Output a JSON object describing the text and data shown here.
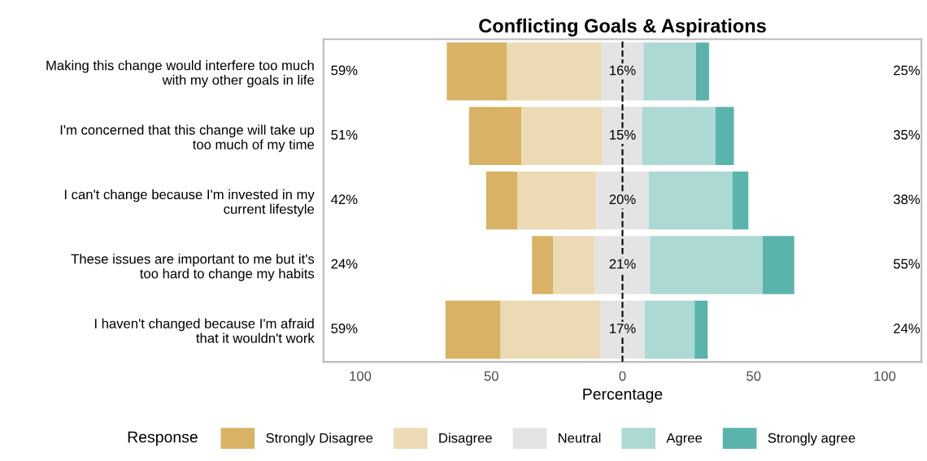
{
  "chart_data": {
    "type": "bar",
    "orientation": "horizontal",
    "title": "Conflicting Goals & Aspirations",
    "xlabel": "Percentage",
    "legend_title": "Response",
    "legend": "bottom",
    "grid": false,
    "categories": [
      "Making this change would interfere too much\nwith my other goals in life",
      "I'm concerned that this change will take up\ntoo much of my time",
      "I can't change because I'm invested in my\ncurrent lifestyle",
      "These issues are important to me but it's\ntoo hard to change my habits",
      "I haven't changed because I'm afraid\nthat it wouldn't work"
    ],
    "series": [
      {
        "name": "Strongly Disagree",
        "color": "#d8b365",
        "values": [
          23,
          20,
          12,
          8,
          21
        ],
        "base": [
          -67,
          -58.5,
          -52,
          -34.5,
          -67.5
        ]
      },
      {
        "name": "Disagree",
        "color": "#ebdab3",
        "values": [
          36,
          31,
          30,
          16,
          38
        ],
        "base": [
          -44,
          -38.5,
          -40,
          -26.5,
          -46.5
        ]
      },
      {
        "name": "Neutral",
        "color": "#e4e4e4",
        "values": [
          16,
          15,
          20,
          21,
          17
        ],
        "base": [
          -8,
          -7.5,
          -10,
          -10.5,
          -8.5
        ],
        "value_labels": [
          "16%",
          "15%",
          "20%",
          "21%",
          "17%"
        ]
      },
      {
        "name": "Agree",
        "color": "#acd9d4",
        "values": [
          20,
          28,
          32,
          43,
          19
        ],
        "base": [
          8,
          7.5,
          10,
          10.5,
          8.5
        ]
      },
      {
        "name": "Strongly agree",
        "color": "#5ab4ac",
        "values": [
          5,
          7,
          6,
          12,
          5
        ],
        "base": [
          28,
          35.5,
          42,
          53.5,
          27.5
        ]
      }
    ],
    "xlim": [
      -114,
      114
    ],
    "xticks": [
      {
        "value": -100,
        "label": "100"
      },
      {
        "value": -50,
        "label": "50"
      },
      0,
      50,
      100
    ],
    "ref_lines": [
      {
        "axis": "x",
        "value": 0,
        "label": null,
        "color": "#000000",
        "line_style": "dashed"
      }
    ],
    "annotations": [
      "59%",
      "25%",
      "51%",
      "35%",
      "42%",
      "38%",
      "24%",
      "55%",
      "59%",
      "24%"
    ]
  }
}
